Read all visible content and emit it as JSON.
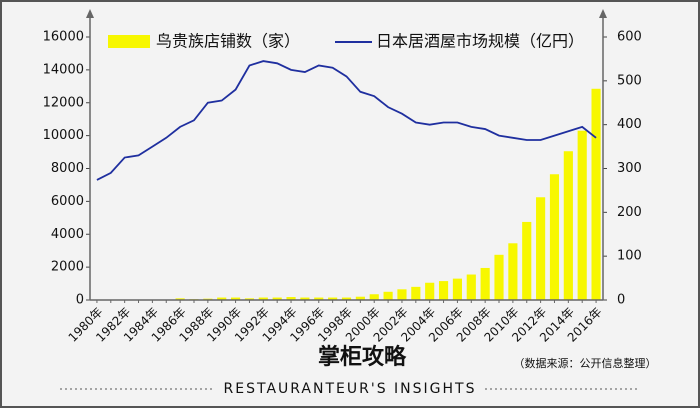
{
  "chart_data": {
    "type": "bar_line",
    "categories": [
      "1980年",
      null,
      "1982年",
      null,
      "1984年",
      null,
      "1986年",
      null,
      "1988年",
      null,
      "1990年",
      null,
      "1992年",
      null,
      "1994年",
      null,
      "1996年",
      null,
      "1998年",
      null,
      "2000年",
      null,
      "2002年",
      null,
      "2004年",
      null,
      "2006年",
      null,
      "2008年",
      null,
      "2010年",
      null,
      "2012年",
      null,
      "2014年",
      null,
      "2016年"
    ],
    "series": [
      {
        "name": "鸟贵族店铺数（家）",
        "color": "#f7f700",
        "type": "bar",
        "values": [
          0,
          0,
          0,
          0,
          0,
          0,
          100,
          50,
          80,
          150,
          150,
          100,
          150,
          150,
          180,
          150,
          150,
          150,
          150,
          200,
          350,
          500,
          650,
          800,
          1050,
          1150,
          1300,
          1550,
          1950,
          2750,
          3450,
          4750,
          6250,
          7650,
          9050,
          10300,
          12850
        ]
      },
      {
        "name": "日本居酒屋市场规模（亿円）",
        "color": "#1f2f9f",
        "type": "line",
        "axis": "y2",
        "values": [
          274,
          290,
          325,
          330,
          350,
          370,
          395,
          410,
          450,
          455,
          480,
          535,
          545,
          540,
          525,
          520,
          535,
          530,
          510,
          475,
          465,
          440,
          425,
          405,
          400,
          405,
          405,
          395,
          390,
          375,
          370,
          365,
          365,
          375,
          385,
          395,
          370
        ]
      }
    ],
    "ylim": [
      0,
      16000
    ],
    "yticks": [
      0,
      2000,
      4000,
      6000,
      8000,
      10000,
      12000,
      14000,
      16000
    ],
    "y2lim": [
      0,
      600
    ],
    "y2ticks": [
      0,
      100,
      200,
      300,
      400,
      500,
      600
    ],
    "brand": "掌柜攻略",
    "source": "（数据来源：公开信息整理）",
    "footer": "RESTAURANTEUR'S  INSIGHTS"
  }
}
